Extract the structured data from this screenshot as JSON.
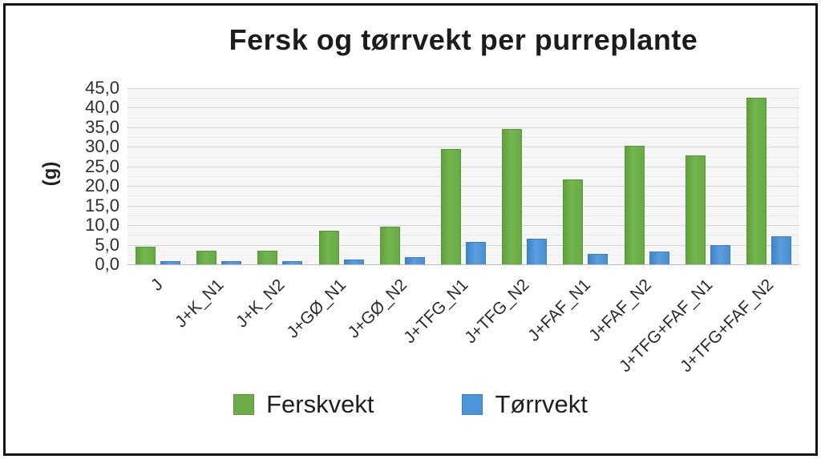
{
  "chart_data": {
    "type": "bar",
    "title": "Fersk og tørrvekt per purreplante",
    "ylabel": "(g)",
    "xlabel": "",
    "categories": [
      "J",
      "J+K_N1",
      "J+K_N2",
      "J+GØ_N1",
      "J+GØ_N2",
      "J+TFG_N1",
      "J+TFG_N2",
      "J+FAF_N1",
      "J+FAF_N2",
      "J+TFG+FAF_N1",
      "J+TFG+FAF_N2"
    ],
    "series": [
      {
        "name": "Ferskvekt",
        "color": "#6CAD49",
        "values": [
          4.4,
          3.2,
          3.2,
          8.3,
          9.5,
          29.3,
          34.4,
          21.5,
          30.0,
          27.6,
          42.4
        ]
      },
      {
        "name": "Tørrvekt",
        "color": "#4E94D9",
        "values": [
          0.7,
          0.6,
          0.6,
          1.1,
          1.6,
          5.5,
          6.3,
          2.4,
          3.0,
          4.7,
          7.0
        ]
      }
    ],
    "ylim": [
      0,
      45
    ],
    "ytick_step": 5,
    "ytick_labels": [
      "0,0",
      "5,0",
      "10,0",
      "15,0",
      "20,0",
      "25,0",
      "30,0",
      "35,0",
      "40,0",
      "45,0"
    ],
    "grid": true,
    "legend_position": "bottom"
  }
}
